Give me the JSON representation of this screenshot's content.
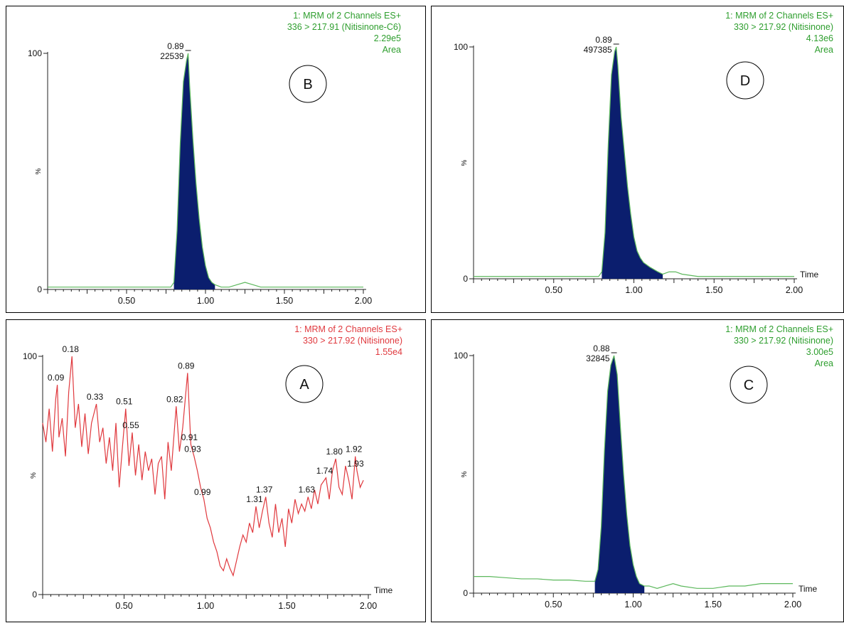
{
  "chart_data": [
    {
      "id": "B",
      "type": "line",
      "panel_label": "B",
      "header": [
        "1: MRM of 2 Channels ES+",
        "336 > 217.91 (Nitisinone-C6)",
        "2.29e5",
        "Area"
      ],
      "header_color": "#2e9e2e",
      "line_color": "#5cb85c",
      "fill_color": "#0b1e6e",
      "xlim": [
        0.0,
        2.0
      ],
      "ylim": [
        0,
        100
      ],
      "y_tick_labels": [
        "0",
        "100"
      ],
      "y_axis_label": "%",
      "x_tick_labels": [
        "0.50",
        "1.00",
        "1.50",
        "2.00"
      ],
      "x_label": "",
      "peak_labels": [
        {
          "x": 0.89,
          "y": 100,
          "text": "0.89",
          "value": "22539"
        }
      ],
      "peak_fill": [
        0.8,
        1.06
      ],
      "x": [
        0.0,
        0.3,
        0.6,
        0.78,
        0.8,
        0.82,
        0.84,
        0.86,
        0.88,
        0.89,
        0.9,
        0.92,
        0.94,
        0.96,
        0.98,
        1.0,
        1.02,
        1.04,
        1.06,
        1.1,
        1.15,
        1.2,
        1.25,
        1.3,
        1.35,
        1.4,
        1.5,
        1.7,
        2.0
      ],
      "y": [
        1,
        1,
        1,
        1,
        3,
        25,
        62,
        88,
        97,
        100,
        86,
        64,
        45,
        30,
        18,
        10,
        5,
        3,
        2,
        1,
        1,
        2,
        3,
        2,
        1,
        1,
        1,
        1,
        1
      ]
    },
    {
      "id": "D",
      "type": "line",
      "panel_label": "D",
      "header": [
        "1: MRM of 2 Channels ES+",
        "330 > 217.92 (Nitisinone)",
        "4.13e6",
        "Area"
      ],
      "header_color": "#2e9e2e",
      "line_color": "#5cb85c",
      "fill_color": "#0b1e6e",
      "xlim": [
        0.0,
        2.0
      ],
      "ylim": [
        0,
        100
      ],
      "y_tick_labels": [
        "0",
        "100"
      ],
      "y_axis_label": "%",
      "x_tick_labels": [
        "0.50",
        "1.00",
        "1.50",
        "2.00"
      ],
      "x_label": "Time",
      "peak_labels": [
        {
          "x": 0.89,
          "y": 100,
          "text": "0.89",
          "value": "497385"
        }
      ],
      "peak_fill": [
        0.8,
        1.18
      ],
      "x": [
        0.0,
        0.3,
        0.6,
        0.78,
        0.8,
        0.82,
        0.84,
        0.86,
        0.88,
        0.89,
        0.9,
        0.92,
        0.94,
        0.96,
        0.98,
        1.0,
        1.02,
        1.04,
        1.06,
        1.1,
        1.15,
        1.18,
        1.22,
        1.26,
        1.3,
        1.4,
        1.5,
        1.7,
        2.0
      ],
      "y": [
        1,
        1,
        1,
        1,
        3,
        20,
        58,
        88,
        98,
        100,
        92,
        70,
        55,
        40,
        28,
        18,
        12,
        9,
        7,
        5,
        3,
        2,
        3,
        3,
        2,
        1,
        1,
        1,
        1
      ]
    },
    {
      "id": "A",
      "type": "line",
      "panel_label": "A",
      "header": [
        "1: MRM of 2 Channels ES+",
        "330 > 217.92 (Nitisinone)",
        "1.55e4"
      ],
      "header_color": "#e0393e",
      "line_color": "#e0393e",
      "fill_color": "",
      "xlim": [
        0.0,
        2.0
      ],
      "ylim": [
        0,
        100
      ],
      "y_tick_labels": [
        "0",
        "100"
      ],
      "y_axis_label": "%",
      "x_tick_labels": [
        "0.50",
        "1.00",
        "1.50",
        "2.00"
      ],
      "x_label": "Time",
      "peak_labels": [
        {
          "x": 0.09,
          "y": 88,
          "text": "0.09"
        },
        {
          "x": 0.18,
          "y": 100,
          "text": "0.18"
        },
        {
          "x": 0.33,
          "y": 80,
          "text": "0.33"
        },
        {
          "x": 0.51,
          "y": 78,
          "text": "0.51"
        },
        {
          "x": 0.55,
          "y": 68,
          "text": "0.55"
        },
        {
          "x": 0.82,
          "y": 79,
          "text": "0.82"
        },
        {
          "x": 0.89,
          "y": 93,
          "text": "0.89"
        },
        {
          "x": 0.91,
          "y": 63,
          "text": "0.91"
        },
        {
          "x": 0.93,
          "y": 58,
          "text": "0.93"
        },
        {
          "x": 0.99,
          "y": 40,
          "text": "0.99"
        },
        {
          "x": 1.31,
          "y": 37,
          "text": "1.31"
        },
        {
          "x": 1.37,
          "y": 41,
          "text": "1.37"
        },
        {
          "x": 1.63,
          "y": 41,
          "text": "1.63"
        },
        {
          "x": 1.74,
          "y": 49,
          "text": "1.74"
        },
        {
          "x": 1.8,
          "y": 57,
          "text": "1.80"
        },
        {
          "x": 1.92,
          "y": 58,
          "text": "1.92"
        },
        {
          "x": 1.93,
          "y": 52,
          "text": "1.93"
        }
      ],
      "x": [
        0.0,
        0.02,
        0.04,
        0.06,
        0.08,
        0.09,
        0.1,
        0.12,
        0.14,
        0.16,
        0.18,
        0.2,
        0.22,
        0.24,
        0.26,
        0.28,
        0.3,
        0.33,
        0.35,
        0.37,
        0.39,
        0.41,
        0.43,
        0.45,
        0.47,
        0.49,
        0.51,
        0.53,
        0.55,
        0.57,
        0.59,
        0.61,
        0.63,
        0.65,
        0.67,
        0.69,
        0.71,
        0.73,
        0.75,
        0.77,
        0.79,
        0.82,
        0.84,
        0.86,
        0.89,
        0.91,
        0.93,
        0.95,
        0.97,
        0.99,
        1.01,
        1.03,
        1.05,
        1.07,
        1.09,
        1.11,
        1.13,
        1.15,
        1.17,
        1.19,
        1.21,
        1.23,
        1.25,
        1.27,
        1.29,
        1.31,
        1.33,
        1.35,
        1.37,
        1.39,
        1.41,
        1.43,
        1.45,
        1.47,
        1.49,
        1.51,
        1.53,
        1.55,
        1.57,
        1.59,
        1.61,
        1.63,
        1.65,
        1.67,
        1.69,
        1.71,
        1.74,
        1.76,
        1.78,
        1.8,
        1.82,
        1.84,
        1.86,
        1.88,
        1.9,
        1.92,
        1.93,
        1.95,
        1.97
      ],
      "y": [
        72,
        64,
        78,
        60,
        82,
        88,
        66,
        74,
        58,
        85,
        100,
        70,
        80,
        62,
        76,
        59,
        72,
        80,
        64,
        70,
        55,
        66,
        52,
        72,
        45,
        62,
        78,
        54,
        68,
        50,
        63,
        48,
        60,
        52,
        57,
        42,
        55,
        58,
        40,
        64,
        52,
        79,
        60,
        70,
        93,
        63,
        58,
        52,
        45,
        40,
        32,
        28,
        22,
        18,
        12,
        10,
        15,
        11,
        8,
        14,
        20,
        25,
        22,
        30,
        26,
        37,
        28,
        35,
        41,
        30,
        24,
        38,
        26,
        32,
        20,
        36,
        30,
        40,
        34,
        38,
        35,
        41,
        36,
        44,
        38,
        46,
        49,
        40,
        52,
        57,
        45,
        42,
        54,
        48,
        40,
        58,
        52,
        45,
        48
      ]
    },
    {
      "id": "C",
      "type": "line",
      "panel_label": "C",
      "header": [
        "1: MRM of 2 Channels ES+",
        "330 > 217.92 (Nitisinone)",
        "3.00e5",
        "Area"
      ],
      "header_color": "#2e9e2e",
      "line_color": "#5cb85c",
      "fill_color": "#0b1e6e",
      "xlim": [
        0.0,
        2.0
      ],
      "ylim": [
        0,
        100
      ],
      "y_tick_labels": [
        "0",
        "100"
      ],
      "y_axis_label": "%",
      "x_tick_labels": [
        "0.50",
        "1.00",
        "1.50",
        "2.00"
      ],
      "x_label": "Time",
      "peak_labels": [
        {
          "x": 0.88,
          "y": 100,
          "text": "0.88",
          "value": "32845"
        }
      ],
      "peak_fill": [
        0.76,
        1.07
      ],
      "x": [
        0.0,
        0.1,
        0.2,
        0.3,
        0.4,
        0.5,
        0.6,
        0.7,
        0.76,
        0.78,
        0.8,
        0.82,
        0.84,
        0.86,
        0.88,
        0.9,
        0.92,
        0.94,
        0.96,
        0.98,
        1.0,
        1.02,
        1.04,
        1.07,
        1.1,
        1.15,
        1.2,
        1.25,
        1.3,
        1.4,
        1.5,
        1.6,
        1.7,
        1.8,
        1.9,
        2.0
      ],
      "y": [
        7,
        7,
        6.5,
        6,
        6,
        5.5,
        5.5,
        5,
        5,
        10,
        28,
        60,
        85,
        96,
        100,
        92,
        70,
        50,
        33,
        20,
        12,
        7,
        4,
        3,
        3,
        2,
        3,
        4,
        3,
        2,
        2,
        3,
        3,
        4,
        4,
        4
      ]
    }
  ]
}
